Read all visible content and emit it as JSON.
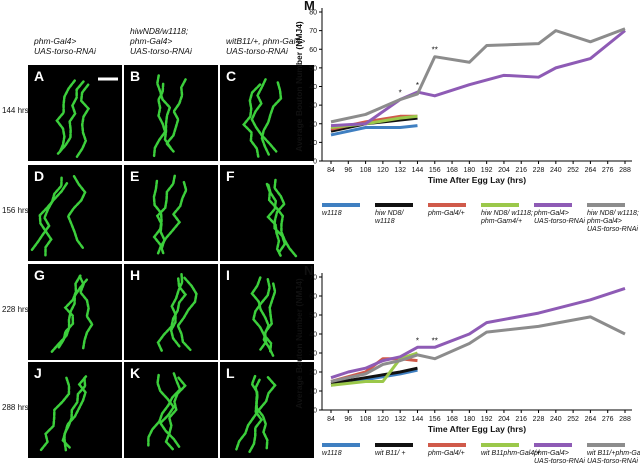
{
  "panels": {
    "columns": [
      [
        "phm-Gal4>",
        "UAS-torso-RNAi"
      ],
      [
        "hiwND8/w1118;",
        "phm-Gal4>",
        "UAS-torso-RNAi"
      ],
      [
        "witB11/+, phm-Gal4>",
        "UAS-torso-RNAi"
      ]
    ],
    "rows": [
      "144 hrs",
      "156 hrs",
      "228 hrs",
      "288 hrs"
    ],
    "letters": [
      [
        "A",
        "B",
        "C"
      ],
      [
        "D",
        "E",
        "F"
      ],
      [
        "G",
        "H",
        "I"
      ],
      [
        "J",
        "K",
        "L"
      ]
    ]
  },
  "chart_data": [
    {
      "type": "line",
      "panel_label": "M",
      "y_label": "Average Bouton Number (NMJ4)",
      "x_label": "Time After Egg Lay (hrs)",
      "xlim": [
        84,
        288
      ],
      "xticks": [
        84,
        96,
        108,
        120,
        132,
        144,
        156,
        168,
        180,
        192,
        204,
        216,
        228,
        240,
        252,
        264,
        276,
        288
      ],
      "ylim": [
        0,
        80
      ],
      "yticks": [
        0,
        10,
        20,
        30,
        40,
        50,
        60,
        70,
        80
      ],
      "annotations": [
        {
          "text": "*",
          "x": 132
        },
        {
          "text": "*",
          "x": 144
        },
        {
          "text": "**",
          "x": 156
        }
      ],
      "series": [
        {
          "name": "w1118",
          "color": "#3f7fc1",
          "x": [
            84,
            108,
            132,
            144
          ],
          "values": [
            14,
            18,
            18,
            19
          ]
        },
        {
          "name": "hiw ND8/\nw1118",
          "color": "#111111",
          "x": [
            84,
            108,
            132,
            144
          ],
          "values": [
            16,
            20,
            22,
            23
          ]
        },
        {
          "name": "phm-Gal4/+",
          "color": "#d05a4a",
          "x": [
            84,
            108,
            132,
            144
          ],
          "values": [
            17,
            21,
            24,
            24
          ]
        },
        {
          "name": "hiw ND8/ w1118;\nphm-Gam4/+",
          "color": "#9bc84a",
          "x": [
            84,
            108,
            132,
            144
          ],
          "values": [
            18,
            20,
            23,
            24
          ]
        },
        {
          "name": "phm-Gal4>\nUAS-torso-RNAi",
          "color": "#8e5bb5",
          "x": [
            84,
            108,
            132,
            144,
            156,
            180,
            204,
            228,
            240,
            264,
            288
          ],
          "values": [
            19,
            20,
            33,
            37,
            35,
            41,
            46,
            45,
            50,
            55,
            70
          ]
        },
        {
          "name": "hiw ND8/ w1118;\nphm-Gal4>\nUAS-torso-RNAi",
          "color": "#8c8c8c",
          "x": [
            84,
            108,
            132,
            144,
            156,
            180,
            192,
            228,
            240,
            264,
            288
          ],
          "values": [
            21,
            25,
            33,
            36,
            56,
            53,
            62,
            63,
            70,
            64,
            71
          ]
        }
      ]
    },
    {
      "type": "line",
      "panel_label": "N",
      "y_label": "Average Bouton Number (NMJ4)",
      "x_label": "Time After Egg Lay (hrs)",
      "xlim": [
        84,
        288
      ],
      "xticks": [
        84,
        96,
        108,
        120,
        132,
        144,
        156,
        168,
        180,
        192,
        204,
        216,
        228,
        240,
        252,
        264,
        276,
        288
      ],
      "ylim": [
        0,
        70
      ],
      "yticks": [
        0,
        10,
        20,
        30,
        40,
        50,
        60,
        70
      ],
      "annotations": [
        {
          "text": "*",
          "x": 144
        },
        {
          "text": "**",
          "x": 156
        }
      ],
      "series": [
        {
          "name": "w1118",
          "color": "#3f7fc1",
          "x": [
            84,
            108,
            132,
            144
          ],
          "values": [
            13,
            16,
            19,
            21
          ]
        },
        {
          "name": "wit B11/ +",
          "color": "#111111",
          "x": [
            84,
            108,
            132,
            144
          ],
          "values": [
            14,
            17,
            20,
            22
          ]
        },
        {
          "name": "phm-Gal4/+",
          "color": "#d05a4a",
          "x": [
            84,
            108,
            120,
            132,
            144
          ],
          "values": [
            15,
            20,
            27,
            27,
            26
          ]
        },
        {
          "name": "wit B11phm-Gal4/+",
          "color": "#9bc84a",
          "x": [
            84,
            108,
            120,
            132,
            144
          ],
          "values": [
            13,
            15,
            15,
            27,
            30
          ]
        },
        {
          "name": "phm-Gal4>\nUAS-torso-RNAi",
          "color": "#8e5bb5",
          "x": [
            84,
            96,
            108,
            120,
            132,
            144,
            156,
            180,
            192,
            228,
            264,
            288
          ],
          "values": [
            17,
            20,
            22,
            26,
            28,
            33,
            33,
            40,
            46,
            51,
            58,
            64
          ]
        },
        {
          "name": "wit B11/+phm-Gal4>\nUAS-torso-RNAi",
          "color": "#8c8c8c",
          "x": [
            84,
            108,
            120,
            132,
            144,
            156,
            180,
            192,
            228,
            264,
            288
          ],
          "values": [
            15,
            19,
            24,
            26,
            29,
            27,
            35,
            41,
            44,
            49,
            40
          ]
        }
      ]
    }
  ]
}
